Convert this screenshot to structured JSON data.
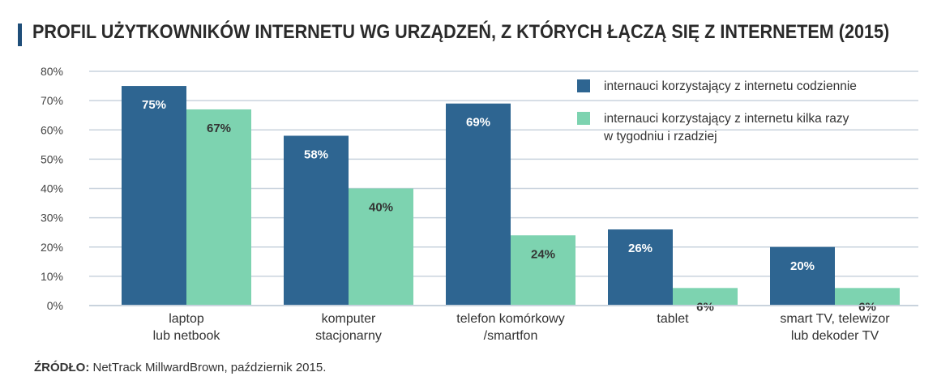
{
  "title": "PROFIL UŻYTKOWNIKÓW INTERNETU WG URZĄDZEŃ, Z KTÓRYCH ŁĄCZĄ SIĘ Z INTERNETEM (2015)",
  "source": {
    "label": "ŹRÓDŁO:",
    "text": " NetTrack MillwardBrown, październik 2015."
  },
  "chart_data": {
    "type": "bar",
    "title": "PROFIL UŻYTKOWNIKÓW INTERNETU WG URZĄDZEŃ, Z KTÓRYCH ŁĄCZĄ SIĘ Z INTERNETEM (2015)",
    "categories": [
      [
        "laptop",
        "lub netbook"
      ],
      [
        "komputer",
        "stacjonarny"
      ],
      [
        "telefon komórkowy",
        "/smartfon"
      ],
      [
        "tablet"
      ],
      [
        "smart TV, telewizor",
        "lub dekoder TV"
      ]
    ],
    "series": [
      {
        "name": "internauci korzystający z internetu codziennie",
        "values": [
          75,
          58,
          69,
          26,
          20
        ],
        "labels": [
          "75%",
          "58%",
          "69%",
          "26%",
          "20%"
        ],
        "color": "#2e6591"
      },
      {
        "name": "internauci korzystający z internetu kilka razy w tygodniu i rzadziej",
        "name_lines": [
          "internauci korzystający z internetu kilka razy",
          "w tygodniu i rzadziej"
        ],
        "values": [
          67,
          40,
          24,
          6,
          6
        ],
        "labels": [
          "67%",
          "40%",
          "24%",
          "6%",
          "6%"
        ],
        "color": "#7dd3b0"
      }
    ],
    "yticks": [
      "0%",
      "10%",
      "20%",
      "30%",
      "40%",
      "50%",
      "60%",
      "70%",
      "80%"
    ],
    "ylim": [
      0,
      80
    ],
    "grid": true,
    "legend": "top-right",
    "grid_color": "#c9d3dd"
  }
}
